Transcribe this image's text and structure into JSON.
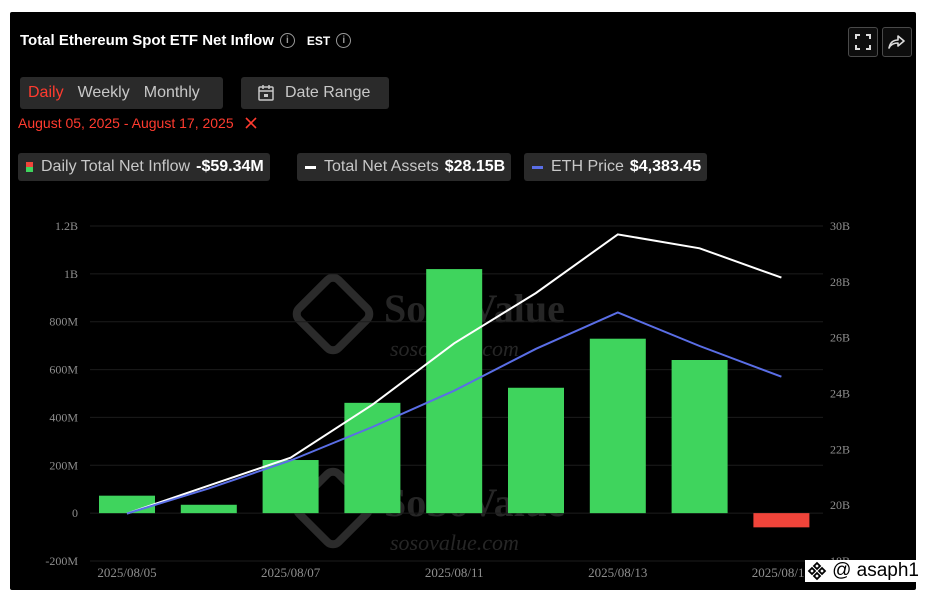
{
  "header": {
    "title": "Total Ethereum Spot ETF Net Inflow",
    "timezone": "EST",
    "info_icon": "info-icon"
  },
  "period_tabs": {
    "daily": "Daily",
    "weekly": "Weekly",
    "monthly": "Monthly",
    "active": "Daily"
  },
  "date_range": {
    "button_label": "Date Range",
    "selected": "August 05, 2025 - August 17, 2025"
  },
  "legend": {
    "inflow_label": "Daily Total Net Inflow",
    "inflow_value": "-$59.34M",
    "assets_label": "Total Net Assets",
    "assets_value": "$28.15B",
    "price_label": "ETH Price",
    "price_value": "$4,383.45"
  },
  "brand": {
    "name": "SoSoValue",
    "url": "sosovalue.com"
  },
  "watermark": "@ asaph1",
  "colors": {
    "inflow_positive": "#3fd45d",
    "inflow_negative": "#f0443a",
    "assets_line": "#ffffff",
    "price_line": "#5a6ee6",
    "accent": "#ff3b2f"
  },
  "chart_data": {
    "type": "bar",
    "categories": [
      "2025/08/05",
      "2025/08/06",
      "2025/08/07",
      "2025/08/08",
      "2025/08/11",
      "2025/08/12",
      "2025/08/13",
      "2025/08/14",
      "2025/08/15"
    ],
    "x_tick_labels": [
      "2025/08/05",
      "2025/08/07",
      "2025/08/11",
      "2025/08/13",
      "2025/08/15"
    ],
    "left_axis": {
      "ticks": [
        "-200M",
        "0",
        "200M",
        "400M",
        "600M",
        "800M",
        "1B",
        "1.2B"
      ],
      "range": [
        -200,
        1200
      ]
    },
    "right_axis": {
      "ticks": [
        "18B",
        "20B",
        "22B",
        "24B",
        "26B",
        "28B",
        "30B"
      ],
      "range": [
        18,
        30
      ]
    },
    "series": [
      {
        "name": "Daily Total Net Inflow",
        "kind": "bar",
        "unit": "M",
        "values": [
          73,
          35,
          222,
          461,
          1020,
          524,
          729,
          640,
          -59.34
        ]
      },
      {
        "name": "Total Net Assets",
        "kind": "line",
        "axis": "right",
        "unit": "B",
        "values": [
          19.7,
          20.7,
          21.7,
          23.6,
          25.8,
          27.6,
          29.7,
          29.2,
          28.15
        ]
      },
      {
        "name": "ETH Price",
        "kind": "line",
        "axis": "right",
        "values": [
          19.7,
          20.6,
          21.6,
          22.8,
          24.1,
          25.6,
          26.9,
          25.7,
          24.6
        ]
      }
    ]
  }
}
